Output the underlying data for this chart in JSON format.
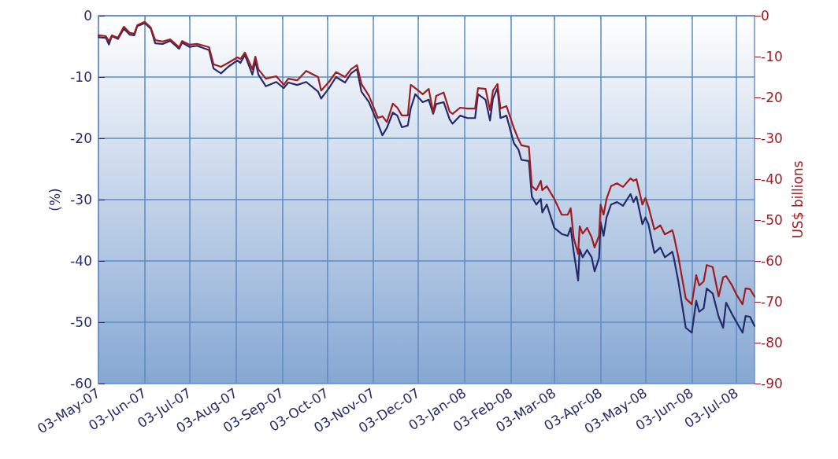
{
  "chart_data": {
    "type": "line",
    "ylabel": "(%)",
    "y2label": "US$ billions",
    "grid": true,
    "marker": "none",
    "line_style": "solid",
    "xlim": [
      "2007-05-03",
      "2008-07-15"
    ],
    "xticks": [
      {
        "value": "2007-05-03",
        "label": "03-May-07"
      },
      {
        "value": "2007-06-03",
        "label": "03-Jun-07"
      },
      {
        "value": "2007-07-03",
        "label": "03-Jul-07"
      },
      {
        "value": "2007-08-03",
        "label": "03-Aug-07"
      },
      {
        "value": "2007-09-03",
        "label": "03-Sep-07"
      },
      {
        "value": "2007-10-03",
        "label": "03-Oct-07"
      },
      {
        "value": "2007-11-03",
        "label": "03-Nov-07"
      },
      {
        "value": "2007-12-03",
        "label": "03-Dec-07"
      },
      {
        "value": "2008-01-03",
        "label": "03-Jan-08"
      },
      {
        "value": "2008-02-03",
        "label": "03-Feb-08"
      },
      {
        "value": "2008-03-03",
        "label": "03-Mar-08"
      },
      {
        "value": "2008-04-03",
        "label": "03-Apr-08"
      },
      {
        "value": "2008-05-03",
        "label": "03-May-08"
      },
      {
        "value": "2008-06-03",
        "label": "03-Jun-08"
      },
      {
        "value": "2008-07-03",
        "label": "03-Jul-08"
      }
    ],
    "ylim": [
      -60,
      0
    ],
    "yticks": [
      -60,
      -50,
      -40,
      -30,
      -20,
      -10,
      0
    ],
    "y2lim": [
      -90,
      0
    ],
    "y2ticks": [
      -90,
      -80,
      -70,
      -60,
      -50,
      -40,
      -30,
      -20,
      -10,
      0
    ],
    "x": [
      "2007-05-03",
      "2007-05-08",
      "2007-05-10",
      "2007-05-12",
      "2007-05-16",
      "2007-05-20",
      "2007-05-24",
      "2007-05-27",
      "2007-05-29",
      "2007-06-03",
      "2007-06-07",
      "2007-06-10",
      "2007-06-15",
      "2007-06-20",
      "2007-06-26",
      "2007-06-28",
      "2007-07-03",
      "2007-07-08",
      "2007-07-16",
      "2007-07-19",
      "2007-07-24",
      "2007-07-29",
      "2007-08-04",
      "2007-08-06",
      "2007-08-09",
      "2007-08-14",
      "2007-08-16",
      "2007-08-18",
      "2007-08-23",
      "2007-08-30",
      "2007-09-04",
      "2007-09-07",
      "2007-09-13",
      "2007-09-19",
      "2007-09-27",
      "2007-09-29",
      "2007-10-04",
      "2007-10-09",
      "2007-10-15",
      "2007-10-19",
      "2007-10-23",
      "2007-10-26",
      "2007-10-31",
      "2007-11-06",
      "2007-11-09",
      "2007-11-12",
      "2007-11-16",
      "2007-11-19",
      "2007-11-22",
      "2007-11-26",
      "2007-11-28",
      "2007-12-01",
      "2007-12-06",
      "2007-12-10",
      "2007-12-13",
      "2007-12-15",
      "2007-12-20",
      "2007-12-24",
      "2007-12-26",
      "2007-12-31",
      "2008-01-05",
      "2008-01-10",
      "2008-01-12",
      "2008-01-17",
      "2008-01-20",
      "2008-01-22",
      "2008-01-25",
      "2008-01-27",
      "2008-01-31",
      "2008-02-05",
      "2008-02-08",
      "2008-02-10",
      "2008-02-15",
      "2008-02-17",
      "2008-02-20",
      "2008-02-23",
      "2008-02-24",
      "2008-02-27",
      "2008-03-03",
      "2008-03-08",
      "2008-03-12",
      "2008-03-14",
      "2008-03-16",
      "2008-03-19",
      "2008-03-20",
      "2008-03-22",
      "2008-03-25",
      "2008-03-28",
      "2008-03-30",
      "2008-04-02",
      "2008-04-03",
      "2008-04-05",
      "2008-04-07",
      "2008-04-10",
      "2008-04-14",
      "2008-04-18",
      "2008-04-23",
      "2008-04-25",
      "2008-04-27",
      "2008-05-01",
      "2008-05-03",
      "2008-05-05",
      "2008-05-09",
      "2008-05-13",
      "2008-05-16",
      "2008-05-21",
      "2008-05-22",
      "2008-05-25",
      "2008-05-30",
      "2008-06-03",
      "2008-06-06",
      "2008-06-08",
      "2008-06-11",
      "2008-06-13",
      "2008-06-17",
      "2008-06-21",
      "2008-06-24",
      "2008-06-26",
      "2008-06-30",
      "2008-07-03",
      "2008-07-07",
      "2008-07-09",
      "2008-07-12",
      "2008-07-15"
    ],
    "series": [
      {
        "color": "#262a6b",
        "values": [
          -3.5,
          -3.6,
          -4.7,
          -3.3,
          -3.8,
          -2.1,
          -3.1,
          -3.2,
          -1.7,
          -1.2,
          -2.1,
          -4.5,
          -4.6,
          -4.1,
          -5.4,
          -4.4,
          -5.1,
          -4.9,
          -5.6,
          -8.6,
          -9.4,
          -8.3,
          -7.3,
          -7.7,
          -6.4,
          -9.6,
          -7.4,
          -9.6,
          -11.5,
          -10.8,
          -11.8,
          -10.9,
          -11.3,
          -10.8,
          -12.4,
          -13.5,
          -11.9,
          -10.0,
          -10.9,
          -9.4,
          -8.7,
          -12.4,
          -14.1,
          -17.6,
          -19.5,
          -18.3,
          -15.8,
          -16.3,
          -18.2,
          -17.9,
          -15.1,
          -12.8,
          -14.1,
          -13.7,
          -16.0,
          -14.4,
          -14.1,
          -16.9,
          -17.6,
          -16.3,
          -16.7,
          -16.7,
          -12.8,
          -13.7,
          -17.1,
          -13.5,
          -11.8,
          -16.7,
          -16.3,
          -20.8,
          -21.8,
          -23.5,
          -23.7,
          -29.5,
          -30.8,
          -29.9,
          -32.1,
          -30.8,
          -34.6,
          -35.6,
          -35.9,
          -34.6,
          -38.5,
          -43.2,
          -38.1,
          -39.4,
          -38.2,
          -39.4,
          -41.7,
          -39.5,
          -33.7,
          -35.9,
          -32.9,
          -30.8,
          -30.4,
          -31.0,
          -29.1,
          -30.4,
          -29.5,
          -34.0,
          -32.9,
          -34.0,
          -38.7,
          -37.8,
          -39.4,
          -38.5,
          -39.5,
          -43.3,
          -50.9,
          -51.7,
          -46.5,
          -48.3,
          -47.7,
          -44.5,
          -45.3,
          -49.1,
          -50.9,
          -46.8,
          -48.7,
          -50.0,
          -51.7,
          -49.0,
          -49.1,
          -50.6
        ]
      },
      {
        "color": "#a01c20",
        "axis": "y2",
        "values": [
          -4.8,
          -5.0,
          -6.3,
          -4.8,
          -5.4,
          -2.7,
          -4.2,
          -4.4,
          -2.3,
          -1.5,
          -2.9,
          -6.0,
          -6.3,
          -5.8,
          -7.7,
          -6.2,
          -7.1,
          -6.9,
          -7.7,
          -11.9,
          -12.5,
          -11.5,
          -10.2,
          -10.6,
          -9.0,
          -13.1,
          -10.0,
          -13.1,
          -15.4,
          -14.8,
          -16.9,
          -15.4,
          -15.8,
          -13.5,
          -15.0,
          -18.3,
          -16.3,
          -13.8,
          -15.0,
          -13.1,
          -12.1,
          -16.7,
          -19.6,
          -25.0,
          -24.6,
          -26.0,
          -21.5,
          -22.5,
          -24.4,
          -24.4,
          -16.9,
          -17.7,
          -19.2,
          -17.9,
          -23.7,
          -19.6,
          -18.8,
          -23.5,
          -24.0,
          -22.5,
          -22.7,
          -22.7,
          -17.7,
          -17.9,
          -23.1,
          -18.3,
          -16.7,
          -22.7,
          -22.1,
          -27.5,
          -30.2,
          -31.7,
          -32.1,
          -41.7,
          -42.7,
          -40.4,
          -42.7,
          -41.7,
          -44.8,
          -48.7,
          -48.7,
          -47.1,
          -54.4,
          -58.3,
          -51.5,
          -53.3,
          -51.9,
          -54.2,
          -56.7,
          -53.8,
          -46.2,
          -48.7,
          -44.8,
          -41.7,
          -41.0,
          -41.9,
          -39.8,
          -40.4,
          -40.0,
          -46.2,
          -44.6,
          -46.7,
          -52.3,
          -51.3,
          -53.5,
          -52.5,
          -53.8,
          -59.0,
          -69.2,
          -70.6,
          -63.5,
          -66.0,
          -65.0,
          -61.0,
          -61.5,
          -68.7,
          -64.0,
          -63.7,
          -66.0,
          -68.3,
          -70.6,
          -66.7,
          -66.9,
          -68.7
        ]
      }
    ]
  }
}
